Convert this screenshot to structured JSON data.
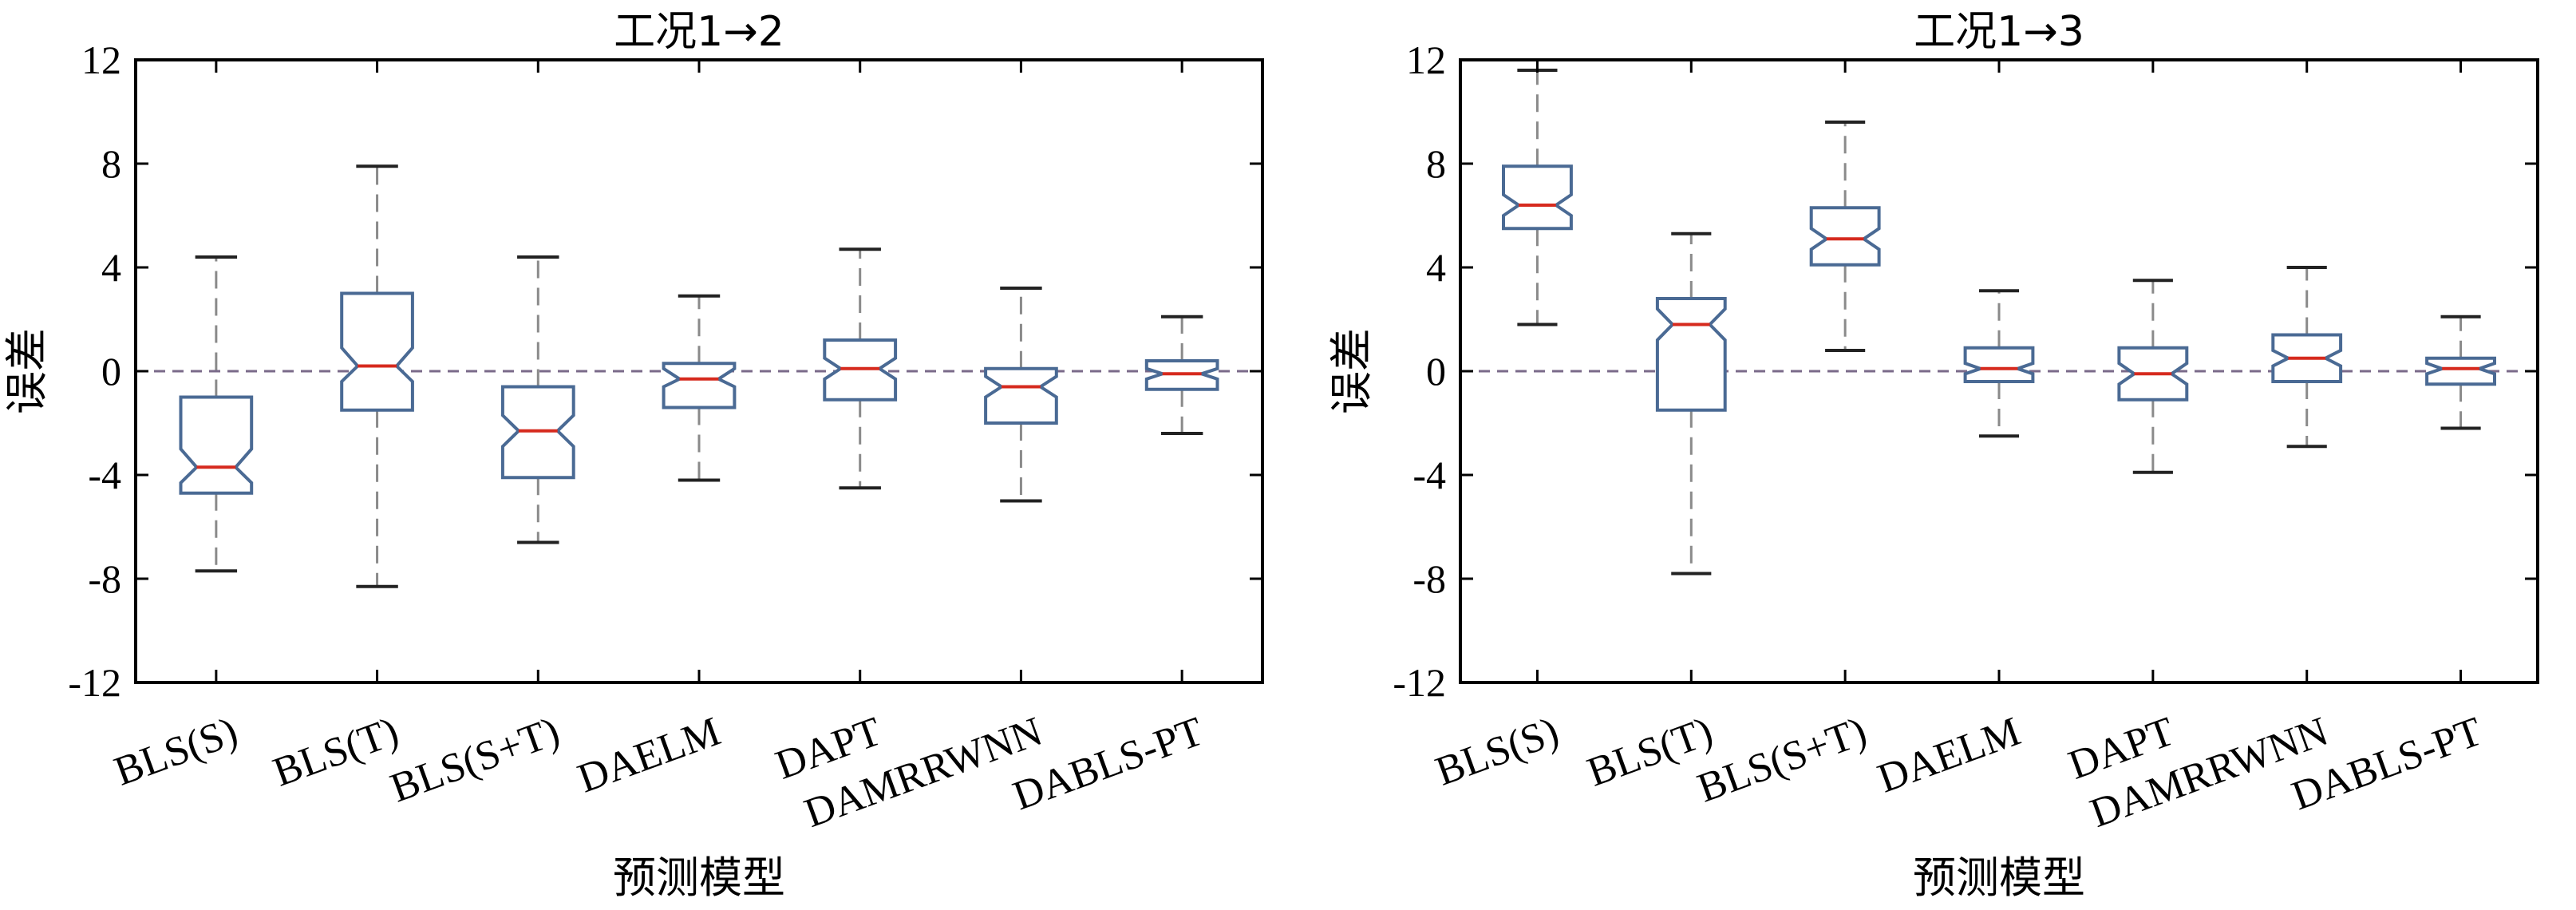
{
  "chart_data": [
    {
      "type": "box",
      "title": "工况1→2",
      "xlabel": "预测模型",
      "ylabel": "误差",
      "ylim": [
        -12,
        12
      ],
      "yticks": [
        12,
        8,
        4,
        0,
        -4,
        -8,
        -12
      ],
      "ytick_labels": [
        "12",
        "8",
        "4",
        "0",
        "-4",
        "-8",
        "-12"
      ],
      "zero_line": true,
      "categories": [
        "BLS(S)",
        "BLS(T)",
        "BLS(S+T)",
        "DAELM",
        "DAPT",
        "DAMRRWNN",
        "DABLS-PT"
      ],
      "boxes": [
        {
          "whislo": -7.7,
          "q1": -4.7,
          "med": -3.7,
          "q3": -1.0,
          "whishi": 4.4,
          "notch_lo": -4.3,
          "notch_hi": -3.0
        },
        {
          "whislo": -8.3,
          "q1": -1.5,
          "med": 0.2,
          "q3": 3.0,
          "whishi": 7.9,
          "notch_lo": -0.4,
          "notch_hi": 0.9
        },
        {
          "whislo": -6.6,
          "q1": -4.1,
          "med": -2.3,
          "q3": -0.6,
          "whishi": 4.4,
          "notch_lo": -2.9,
          "notch_hi": -1.7
        },
        {
          "whislo": -4.2,
          "q1": -1.4,
          "med": -0.3,
          "q3": 0.3,
          "whishi": 2.9,
          "notch_lo": -0.6,
          "notch_hi": 0.1
        },
        {
          "whislo": -4.5,
          "q1": -1.1,
          "med": 0.1,
          "q3": 1.2,
          "whishi": 4.7,
          "notch_lo": -0.3,
          "notch_hi": 0.5
        },
        {
          "whislo": -5.0,
          "q1": -2.0,
          "med": -0.6,
          "q3": 0.1,
          "whishi": 3.2,
          "notch_lo": -1.0,
          "notch_hi": -0.2
        },
        {
          "whislo": -2.4,
          "q1": -0.7,
          "med": -0.1,
          "q3": 0.4,
          "whishi": 2.1,
          "notch_lo": -0.3,
          "notch_hi": 0.1
        }
      ]
    },
    {
      "type": "box",
      "title": "工况1→3",
      "xlabel": "预测模型",
      "ylabel": "误差",
      "ylim": [
        -12,
        12
      ],
      "yticks": [
        12,
        8,
        4,
        0,
        -4,
        -8,
        -12
      ],
      "ytick_labels": [
        "12",
        "8",
        "4",
        "0",
        "-4",
        "-8",
        "-12"
      ],
      "zero_line": true,
      "categories": [
        "BLS(S)",
        "BLS(T)",
        "BLS(S+T)",
        "DAELM",
        "DAPT",
        "DAMRRWNN",
        "DABLS-PT"
      ],
      "boxes": [
        {
          "whislo": 1.8,
          "q1": 5.5,
          "med": 6.4,
          "q3": 7.9,
          "whishi": 11.6,
          "notch_lo": 6.0,
          "notch_hi": 6.8
        },
        {
          "whislo": -7.8,
          "q1": -1.5,
          "med": 1.8,
          "q3": 2.8,
          "whishi": 5.3,
          "notch_lo": 1.2,
          "notch_hi": 2.4
        },
        {
          "whislo": 0.8,
          "q1": 4.1,
          "med": 5.1,
          "q3": 6.3,
          "whishi": 9.6,
          "notch_lo": 4.7,
          "notch_hi": 5.5
        },
        {
          "whislo": -2.5,
          "q1": -0.4,
          "med": 0.1,
          "q3": 0.9,
          "whishi": 3.1,
          "notch_lo": -0.1,
          "notch_hi": 0.3
        },
        {
          "whislo": -3.9,
          "q1": -1.1,
          "med": -0.1,
          "q3": 0.9,
          "whishi": 3.5,
          "notch_lo": -0.5,
          "notch_hi": 0.3
        },
        {
          "whislo": -2.9,
          "q1": -0.4,
          "med": 0.5,
          "q3": 1.4,
          "whishi": 4.0,
          "notch_lo": 0.2,
          "notch_hi": 0.8
        },
        {
          "whislo": -2.2,
          "q1": -0.5,
          "med": 0.1,
          "q3": 0.5,
          "whishi": 2.1,
          "notch_lo": -0.1,
          "notch_hi": 0.3
        }
      ]
    }
  ],
  "colors": {
    "box_edge": "#4a6a94",
    "median": "#d62a1e",
    "whisker": "#8a8a8a",
    "cap": "#222222",
    "zero_line": "#7a6a8a",
    "axis": "#000000"
  }
}
